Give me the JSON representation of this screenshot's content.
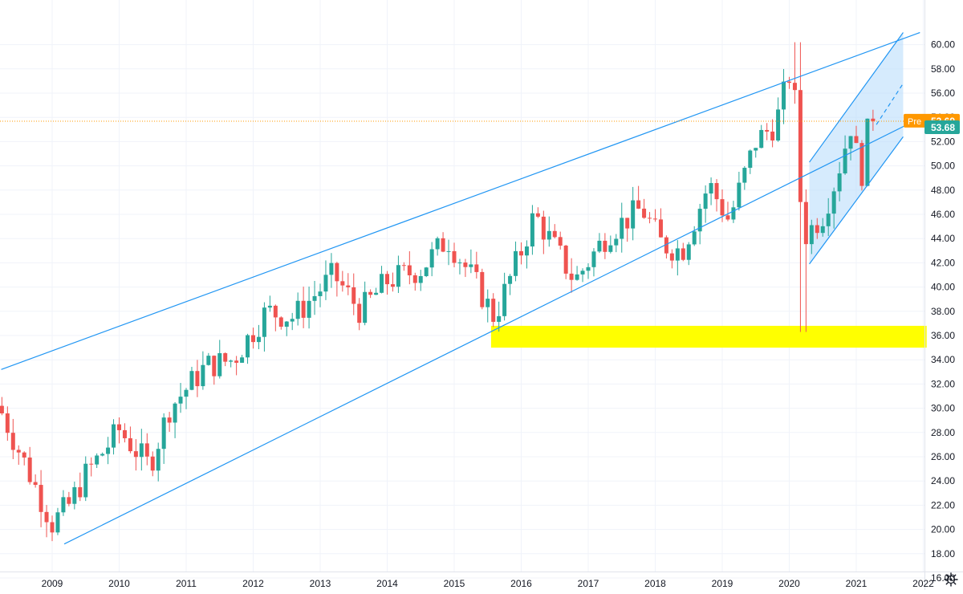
{
  "chart_data": {
    "type": "candlestick",
    "interval": "monthly",
    "ylim": [
      15,
      61
    ],
    "y_ticks": [
      "16.00",
      "18.00",
      "20.00",
      "22.00",
      "24.00",
      "26.00",
      "28.00",
      "30.00",
      "32.00",
      "34.00",
      "36.00",
      "38.00",
      "40.00",
      "42.00",
      "44.00",
      "46.00",
      "48.00",
      "50.00",
      "52.00",
      "54.00",
      "56.00",
      "58.00",
      "60.00"
    ],
    "x_ticks": [
      "2009",
      "2010",
      "2011",
      "2012",
      "2013",
      "2014",
      "2015",
      "2016",
      "2017",
      "2018",
      "2019",
      "2020",
      "2021",
      "2022"
    ],
    "x_range_years": [
      2008.24,
      2022.05
    ],
    "closes": [
      {
        "t": 2008.25,
        "c": 29.6
      },
      {
        "t": 2009.0,
        "c": 20.5
      },
      {
        "t": 2009.25,
        "c": 22.0
      },
      {
        "t": 2009.5,
        "c": 24.5
      },
      {
        "t": 2010.0,
        "c": 28.2
      },
      {
        "t": 2010.45,
        "c": 25.2
      },
      {
        "t": 2010.75,
        "c": 30.0
      },
      {
        "t": 2011.3,
        "c": 33.5
      },
      {
        "t": 2011.7,
        "c": 34.0
      },
      {
        "t": 2012.2,
        "c": 38.0
      },
      {
        "t": 2012.6,
        "c": 37.5
      },
      {
        "t": 2013.2,
        "c": 41.0
      },
      {
        "t": 2013.6,
        "c": 38.0
      },
      {
        "t": 2014.0,
        "c": 40.5
      },
      {
        "t": 2014.5,
        "c": 41.5
      },
      {
        "t": 2014.9,
        "c": 44.0
      },
      {
        "t": 2015.3,
        "c": 40.5
      },
      {
        "t": 2015.6,
        "c": 37.5
      },
      {
        "t": 2016.0,
        "c": 43.0
      },
      {
        "t": 2016.2,
        "c": 46.0
      },
      {
        "t": 2016.8,
        "c": 40.5
      },
      {
        "t": 2017.3,
        "c": 44.5
      },
      {
        "t": 2017.8,
        "c": 46.5
      },
      {
        "t": 2018.1,
        "c": 43.5
      },
      {
        "t": 2018.4,
        "c": 43.0
      },
      {
        "t": 2018.8,
        "c": 48.5
      },
      {
        "t": 2019.1,
        "c": 45.5
      },
      {
        "t": 2019.5,
        "c": 52.0
      },
      {
        "t": 2019.8,
        "c": 53.5
      },
      {
        "t": 2020.05,
        "c": 58.5
      },
      {
        "t": 2020.2,
        "c": 44.0
      },
      {
        "t": 2020.5,
        "c": 46.0
      },
      {
        "t": 2020.7,
        "c": 49.0
      },
      {
        "t": 2020.95,
        "c": 54.0
      },
      {
        "t": 2021.05,
        "c": 48.0
      },
      {
        "t": 2021.15,
        "c": 52.5
      },
      {
        "t": 2021.25,
        "c": 53.68
      }
    ],
    "price_labels": {
      "pre": {
        "tag": "Pre",
        "value": "53.69",
        "color": "#ff9800"
      },
      "last": {
        "value": "53.68",
        "color": "#26a69a"
      }
    },
    "support_zone": {
      "from_year": 2015.55,
      "to_year": 2022.05,
      "low": 35.0,
      "high": 36.8,
      "color": "#ffff00"
    },
    "trendlines": [
      {
        "name": "upper-channel-line",
        "p1": [
          2008.24,
          33.2
        ],
        "p2": [
          2021.95,
          61.0
        ]
      },
      {
        "name": "lower-channel-line",
        "p1": [
          2009.18,
          18.8
        ],
        "p2": [
          2022.05,
          54.2
        ]
      },
      {
        "name": "small-channel-upper",
        "p1": [
          2020.3,
          50.3
        ],
        "p2": [
          2021.7,
          61.0
        ]
      },
      {
        "name": "small-channel-lower",
        "p1": [
          2020.3,
          41.9
        ],
        "p2": [
          2021.7,
          52.4
        ]
      }
    ],
    "projection_dashed": {
      "p1": [
        2021.3,
        53.4
      ],
      "p2": [
        2021.7,
        56.8
      ]
    },
    "colors": {
      "up": "#26a69a",
      "down": "#ef5350",
      "trendline": "#2196f3",
      "channel_fill": "#bbdefb",
      "price_line": "#ff9800",
      "grid": "#f0f3fa"
    }
  }
}
